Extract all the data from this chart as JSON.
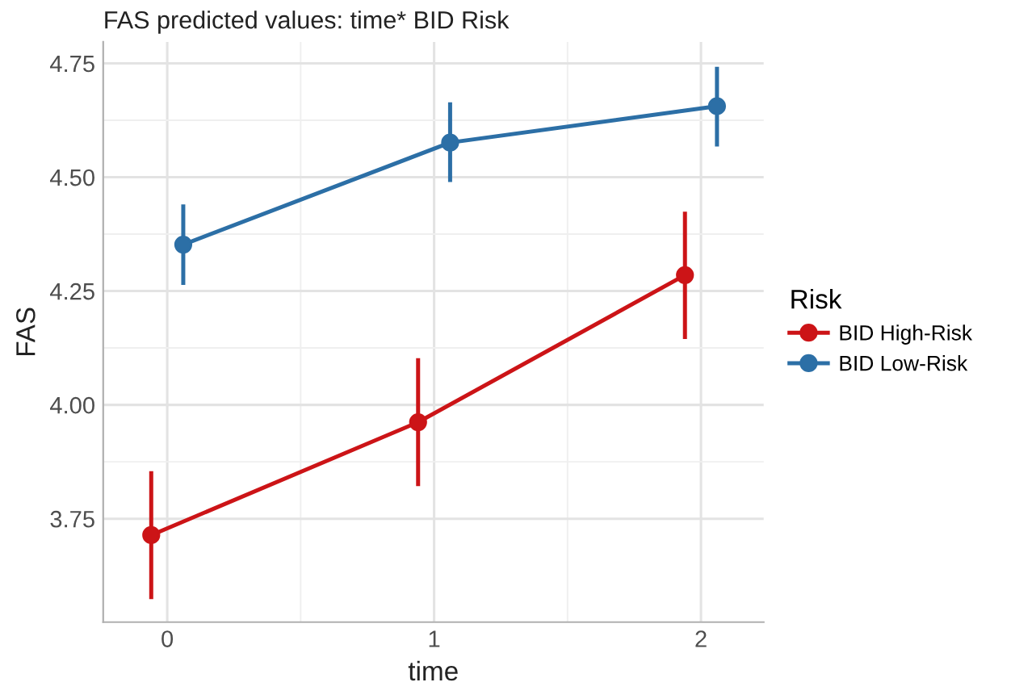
{
  "chart_data": {
    "type": "line",
    "title": "FAS predicted values: time* BID Risk",
    "xlabel": "time",
    "ylabel": "FAS",
    "legend_title": "Risk",
    "series": [
      {
        "name": "BID High-Risk",
        "color": "#cc1417",
        "x": [
          -0.06,
          0.94,
          1.94
        ],
        "values": [
          3.714,
          3.962,
          4.285
        ],
        "errors": [
          [
            3.578,
            3.85
          ],
          [
            3.826,
            4.098
          ],
          [
            4.149,
            4.42
          ]
        ]
      },
      {
        "name": "BID Low-Risk",
        "color": "#2c6fa6",
        "x": [
          0.06,
          1.06,
          2.06
        ],
        "values": [
          4.352,
          4.576,
          4.656
        ],
        "errors": [
          [
            4.268,
            4.436
          ],
          [
            4.494,
            4.66
          ],
          [
            4.572,
            4.738
          ]
        ]
      }
    ],
    "xlim": [
      -0.24,
      2.235
    ],
    "xticks": [
      0,
      1,
      2
    ],
    "ylim": [
      3.523,
      4.797
    ],
    "yticks": [
      3.75,
      {
        "value": 4,
        "label": "4.00"
      },
      4.25,
      {
        "value": 4.5,
        "label": "4.50"
      },
      4.75
    ],
    "grid": true,
    "legend": "right",
    "marker": "circle",
    "line_style": "solid"
  }
}
